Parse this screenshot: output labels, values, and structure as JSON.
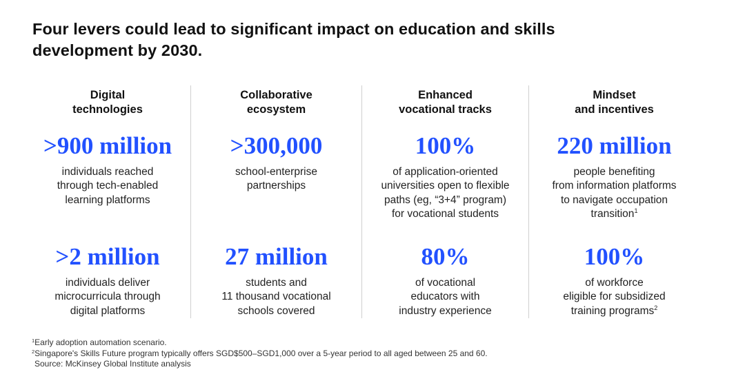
{
  "title": {
    "line1": "Four levers could lead to significant impact on education and skills",
    "line2": "development by 2030."
  },
  "columns": [
    {
      "heading": [
        "Digital",
        "technologies"
      ],
      "stat1": ">900 million",
      "desc1": [
        "individuals reached",
        "through tech-enabled",
        "learning platforms"
      ],
      "stat2": ">2 million",
      "desc2": [
        "individuals deliver",
        "microcurricula through",
        "digital platforms"
      ]
    },
    {
      "heading": [
        "Collaborative",
        "ecosystem"
      ],
      "stat1": ">300,000",
      "desc1": [
        "school-enterprise",
        "partnerships"
      ],
      "stat2": "27 million",
      "desc2": [
        "students and",
        "11 thousand vocational",
        "schools covered"
      ]
    },
    {
      "heading": [
        "Enhanced",
        "vocational tracks"
      ],
      "stat1": "100%",
      "desc1": [
        "of application-oriented",
        "universities open to flexible",
        "paths (eg, “3+4” program)",
        "for vocational students"
      ],
      "stat2": "80%",
      "desc2": [
        "of vocational",
        "educators with",
        "industry experience"
      ]
    },
    {
      "heading": [
        "Mindset",
        "and incentives"
      ],
      "stat1": "220 million",
      "desc1": [
        "people benefiting",
        "from information platforms",
        "to navigate occupation",
        "transition"
      ],
      "desc1_sup": "1",
      "stat2": "100%",
      "desc2": [
        "of workforce",
        "eligible for subsidized",
        "training programs"
      ],
      "desc2_sup": "2"
    }
  ],
  "footnotes": {
    "note1_marker": "1",
    "note1": "Early adoption automation scenario.",
    "note2_marker": "2",
    "note2": "Singapore's Skills Future program typically offers SGD$500–SGD1,000 over a 5-year period to all aged between 25 and 60.",
    "source": "Source: McKinsey Global Institute analysis"
  },
  "colors": {
    "accent": "#2251ff",
    "text": "#111111",
    "divider": "#cfcfcf"
  }
}
